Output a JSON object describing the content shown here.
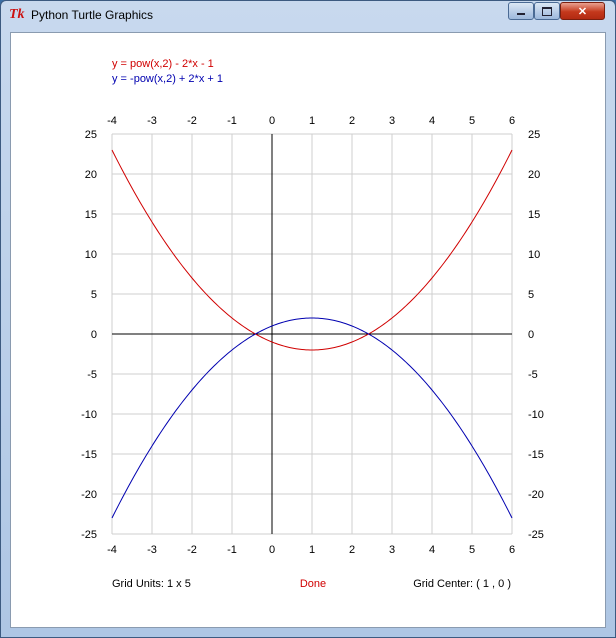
{
  "window": {
    "title": "Python Turtle Graphics",
    "app_icon": "tk-icon",
    "app_icon_text": "Tk",
    "minimize_icon": "minimize-icon",
    "maximize_icon": "maximize-icon",
    "close_icon": "close-icon",
    "close_glyph": "✕"
  },
  "legend": [
    {
      "text": "y = pow(x,2) - 2*x - 1",
      "color": "#d00000"
    },
    {
      "text": "y = -pow(x,2) + 2*x + 1",
      "color": "#0000b0"
    }
  ],
  "footer": {
    "grid_units": "Grid Units:  1  x  5",
    "status": "Done",
    "status_color": "#d00000",
    "grid_center": "Grid Center:  (  1  ,  0  )"
  },
  "chart_data": {
    "type": "line",
    "x_range": [
      -4,
      6
    ],
    "y_range": [
      -25,
      25
    ],
    "x_ticks": [
      "-4",
      "-3",
      "-2",
      "-1",
      "0",
      "1",
      "2",
      "3",
      "4",
      "5",
      "6"
    ],
    "y_ticks": [
      "25",
      "20",
      "15",
      "10",
      "5",
      "0",
      "-5",
      "-10",
      "-15",
      "-20",
      "-25"
    ],
    "grid": true,
    "grid_color": "#cfcfcf",
    "axis_color": "#000000",
    "series": [
      {
        "name": "y = pow(x,2) - 2*x - 1",
        "color": "#d00000",
        "a": 1,
        "b": -2,
        "c": -1
      },
      {
        "name": "y = -pow(x,2) + 2*x + 1",
        "color": "#0000b0",
        "a": -1,
        "b": 2,
        "c": 1
      }
    ]
  }
}
